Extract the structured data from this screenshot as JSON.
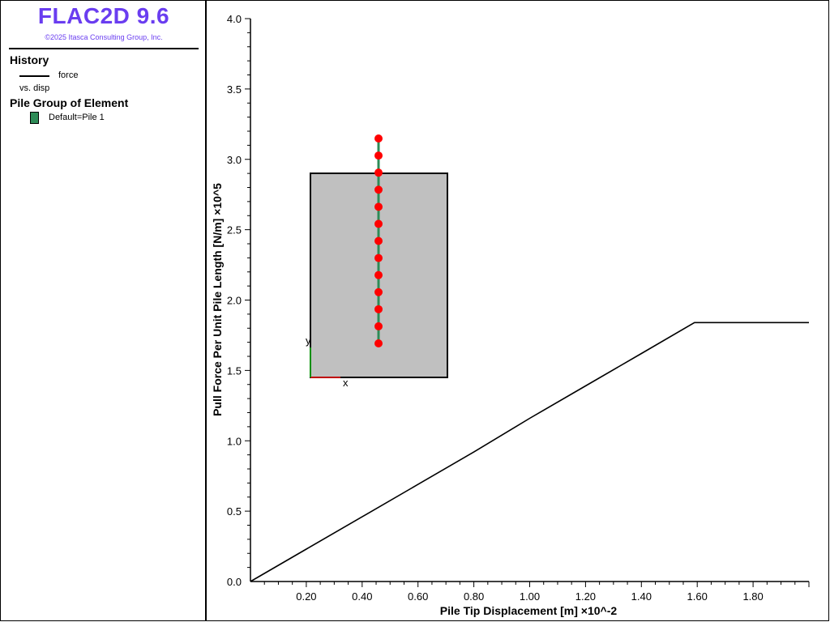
{
  "app": {
    "title": "FLAC2D 9.6",
    "copyright": "©2025 Itasca Consulting Group, Inc."
  },
  "legend": {
    "history_heading": "History",
    "history_series": "force",
    "history_vs": "vs. disp",
    "group_heading": "Pile Group of Element",
    "group_item": "Default=Pile 1"
  },
  "colors": {
    "title": "#6a3df0",
    "series": "#000000",
    "pile": "#2e8b57",
    "nodes": "#ff0000",
    "zone": "#c0c0c0",
    "axis_x": "#ff0000",
    "axis_y": "#00c000"
  },
  "inset": {
    "axis_x": "x",
    "axis_y": "y"
  },
  "chart_data": {
    "type": "line",
    "xlabel": "Pile Tip Displacement [m]  ×10^-2",
    "ylabel": "Pull Force Per Unit Pile Length [N/m]  ×10^5",
    "xlim": [
      0,
      2.0
    ],
    "ylim": [
      0,
      4.0
    ],
    "x_ticks": [
      "0.20",
      "0.40",
      "0.60",
      "0.80",
      "1.00",
      "1.20",
      "1.40",
      "1.60",
      "1.80"
    ],
    "y_ticks": [
      "0.0",
      "0.5",
      "1.0",
      "1.5",
      "2.0",
      "2.5",
      "3.0",
      "3.5",
      "4.0"
    ],
    "grid": false,
    "series": [
      {
        "name": "force",
        "x": [
          0.0,
          0.2,
          0.4,
          0.6,
          0.8,
          1.0,
          1.2,
          1.4,
          1.59,
          1.6,
          2.0
        ],
        "y": [
          0.0,
          0.23,
          0.46,
          0.69,
          0.92,
          1.16,
          1.39,
          1.62,
          1.84,
          1.84,
          1.84
        ]
      }
    ]
  }
}
